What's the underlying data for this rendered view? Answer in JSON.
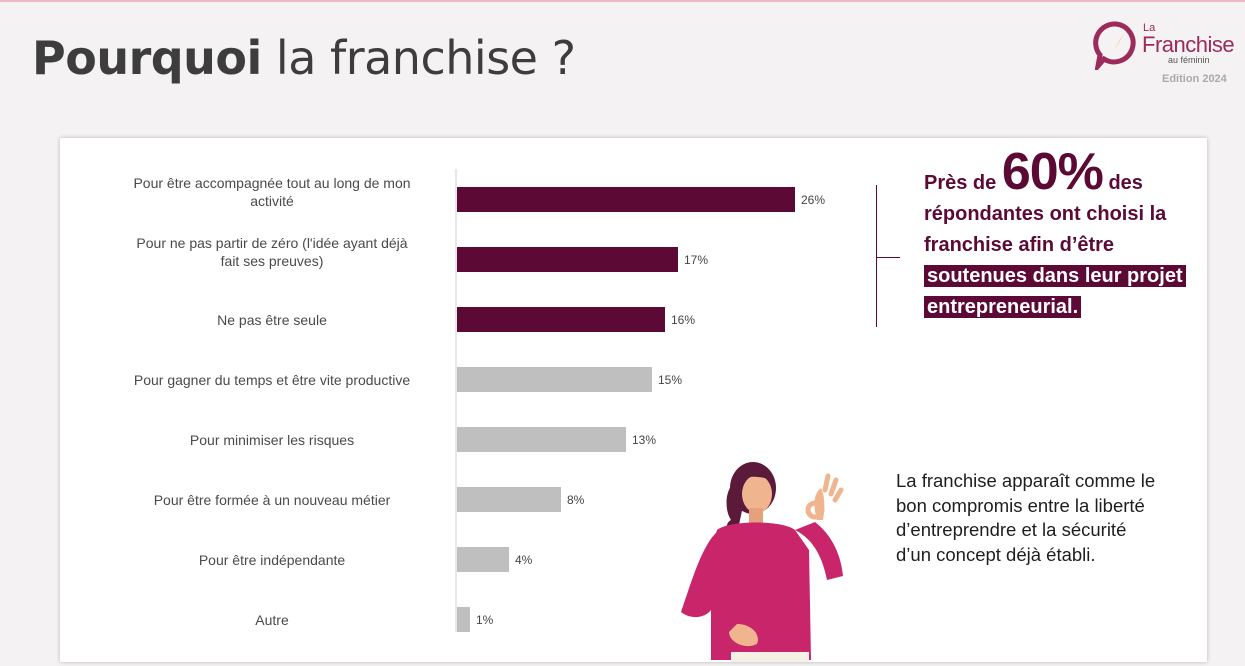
{
  "page": {
    "title_bold": "Pourquoi",
    "title_rest": "la franchise ?",
    "logo": {
      "line1": "La",
      "line2": "Franchise",
      "line3": "au féminin",
      "edition": "Edition 2024"
    }
  },
  "chart_data": {
    "type": "bar",
    "orientation": "horizontal",
    "categories": [
      "Pour être accompagnée tout au long de mon activité",
      "Pour ne pas partir de zéro (l'idée ayant déjà fait ses preuves)",
      "Ne pas être seule",
      "Pour gagner du temps et être vite productive",
      "Pour minimiser les risques",
      "Pour être formée à un nouveau métier",
      "Pour être indépendante",
      "Autre"
    ],
    "values": [
      26,
      17,
      16,
      15,
      13,
      8,
      4,
      1
    ],
    "value_labels": [
      "26%",
      "17%",
      "16%",
      "15%",
      "13%",
      "8%",
      "4%",
      "1%"
    ],
    "highlight_colors": [
      "#5c0a35",
      "#5c0a35",
      "#5c0a35",
      "#bfbfbf",
      "#bfbfbf",
      "#bfbfbf",
      "#bfbfbf",
      "#bfbfbf"
    ],
    "xlim": [
      0,
      26
    ],
    "grid": false,
    "title": "",
    "xlabel": "",
    "ylabel": ""
  },
  "callout": {
    "prefix": "Près de",
    "big": "60%",
    "suffix": "des répondantes ont choisi la franchise afin d’être",
    "highlight": "soutenues dans leur projet entrepreneurial."
  },
  "conclusion": "La franchise apparaît comme le bon compromis entre la liberté d’entreprendre et la sécurité d’un concept déjà établi."
}
